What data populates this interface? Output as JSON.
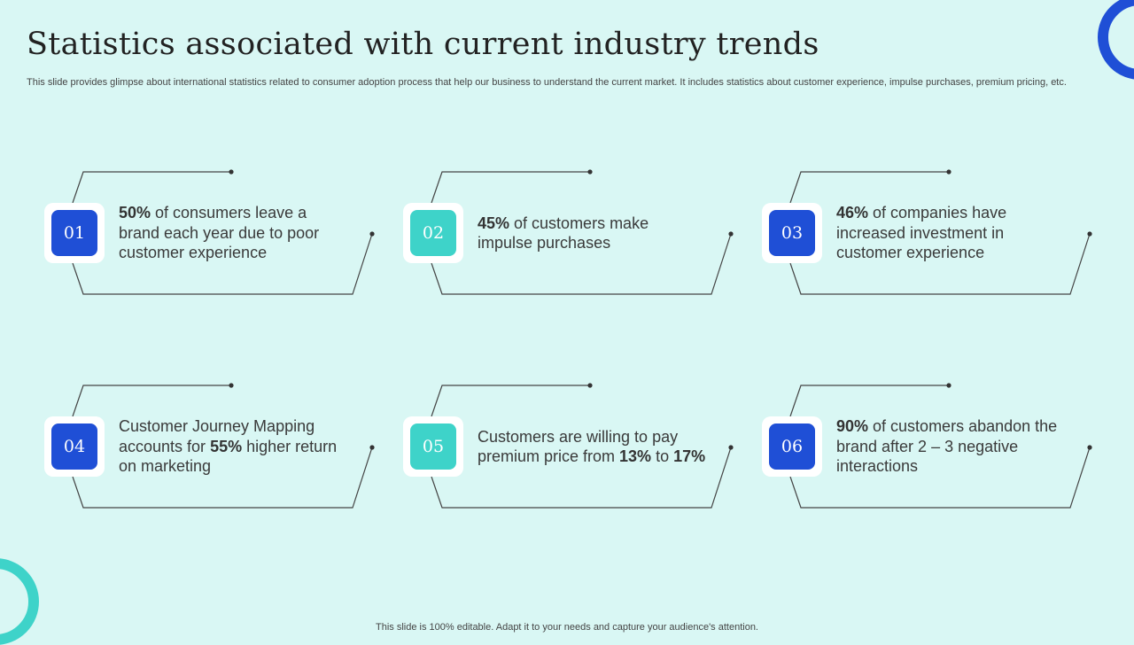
{
  "slide": {
    "title": "Statistics associated with current industry trends",
    "subtitle": "This slide provides glimpse about international statistics related to consumer adoption process that help our business to understand the current market. It includes statistics about customer experience, impulse purchases, premium pricing, etc.",
    "footer": "This slide is 100% editable. Adapt it to your needs and capture your audience's attention."
  },
  "colors": {
    "background": "#d9f7f4",
    "blue": "#1f4fd6",
    "teal": "#3ed3c9"
  },
  "cards": [
    {
      "number": "01",
      "color": "blue",
      "parts": [
        {
          "text": "50%",
          "bold": true
        },
        {
          "text": " of consumers leave a brand each year due to poor customer experience",
          "bold": false
        }
      ]
    },
    {
      "number": "02",
      "color": "teal",
      "parts": [
        {
          "text": "45%",
          "bold": true
        },
        {
          "text": " of customers make impulse purchases",
          "bold": false
        }
      ]
    },
    {
      "number": "03",
      "color": "blue",
      "parts": [
        {
          "text": "46%",
          "bold": true
        },
        {
          "text": " of companies have increased investment in customer experience",
          "bold": false
        }
      ]
    },
    {
      "number": "04",
      "color": "blue",
      "parts": [
        {
          "text": "Customer Journey Mapping accounts for ",
          "bold": false
        },
        {
          "text": "55%",
          "bold": true
        },
        {
          "text": " higher return on marketing",
          "bold": false
        }
      ]
    },
    {
      "number": "05",
      "color": "teal",
      "parts": [
        {
          "text": "Customers are willing to pay premium price from ",
          "bold": false
        },
        {
          "text": "13%",
          "bold": true
        },
        {
          "text": " to ",
          "bold": false
        },
        {
          "text": "17%",
          "bold": true
        }
      ]
    },
    {
      "number": "06",
      "color": "blue",
      "parts": [
        {
          "text": "90%",
          "bold": true
        },
        {
          "text": " of customers abandon the brand after 2 – 3 negative interactions",
          "bold": false
        }
      ]
    }
  ]
}
